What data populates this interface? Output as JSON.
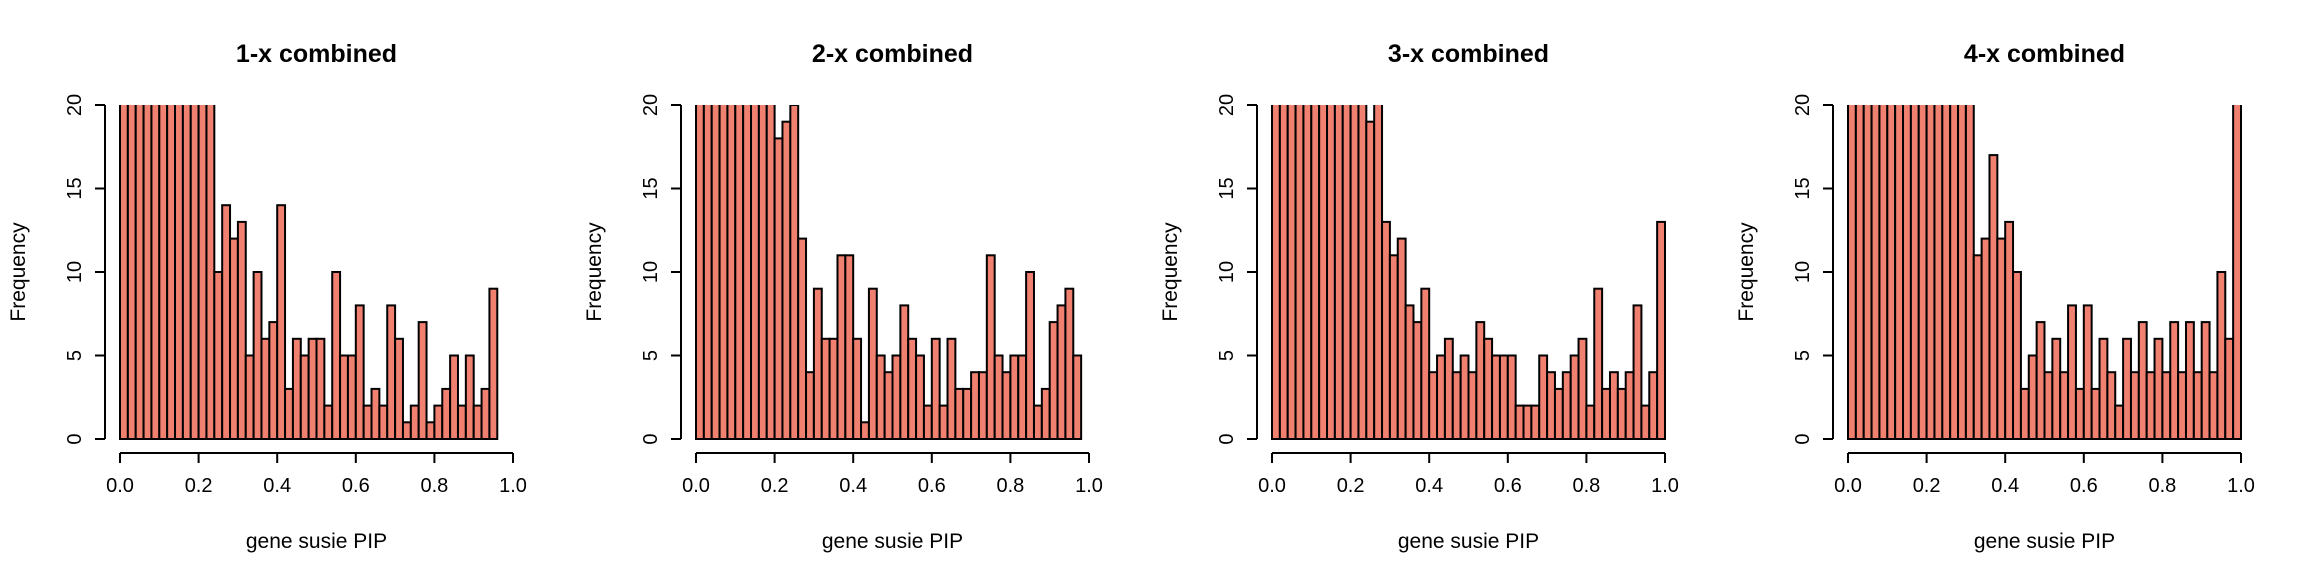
{
  "bar_color": "#F08070",
  "chart_data": [
    {
      "type": "bar",
      "title": "1-x combined",
      "xlabel": "gene susie PIP",
      "ylabel": "Frequency",
      "xlim": [
        0,
        1
      ],
      "ylim": [
        0,
        20
      ],
      "xticks": [
        "0.0",
        "0.2",
        "0.4",
        "0.6",
        "0.8",
        "1.0"
      ],
      "yticks": [
        "0",
        "5",
        "10",
        "15",
        "20"
      ],
      "bin_width": 0.02,
      "values": [
        21,
        21,
        21,
        21,
        21,
        21,
        21,
        21,
        21,
        21,
        21,
        21,
        10,
        14,
        12,
        13,
        5,
        10,
        6,
        7,
        14,
        3,
        6,
        5,
        6,
        6,
        2,
        10,
        5,
        5,
        8,
        2,
        3,
        2,
        8,
        6,
        1,
        2,
        7,
        1,
        2,
        3,
        5,
        2,
        5,
        2,
        3,
        9,
        0,
        0
      ]
    },
    {
      "type": "bar",
      "title": "2-x combined",
      "xlabel": "gene susie PIP",
      "ylabel": "Frequency",
      "xlim": [
        0,
        1
      ],
      "ylim": [
        0,
        20
      ],
      "xticks": [
        "0.0",
        "0.2",
        "0.4",
        "0.6",
        "0.8",
        "1.0"
      ],
      "yticks": [
        "0",
        "5",
        "10",
        "15",
        "20"
      ],
      "bin_width": 0.02,
      "values": [
        21,
        21,
        21,
        21,
        21,
        21,
        21,
        21,
        21,
        21,
        18,
        19,
        20,
        12,
        4,
        9,
        6,
        6,
        11,
        11,
        6,
        1,
        9,
        5,
        4,
        5,
        8,
        6,
        5,
        2,
        6,
        2,
        6,
        3,
        3,
        4,
        4,
        11,
        5,
        4,
        5,
        5,
        10,
        2,
        3,
        7,
        8,
        9,
        5,
        0
      ]
    },
    {
      "type": "bar",
      "title": "3-x combined",
      "xlabel": "gene susie PIP",
      "ylabel": "Frequency",
      "xlim": [
        0,
        1
      ],
      "ylim": [
        0,
        20
      ],
      "xticks": [
        "0.0",
        "0.2",
        "0.4",
        "0.6",
        "0.8",
        "1.0"
      ],
      "yticks": [
        "0",
        "5",
        "10",
        "15",
        "20"
      ],
      "bin_width": 0.02,
      "values": [
        21,
        21,
        21,
        21,
        21,
        21,
        21,
        21,
        21,
        21,
        21,
        21,
        19,
        21,
        13,
        11,
        12,
        8,
        7,
        9,
        4,
        5,
        6,
        4,
        5,
        4,
        7,
        6,
        5,
        5,
        5,
        2,
        2,
        2,
        5,
        4,
        3,
        4,
        5,
        6,
        2,
        9,
        3,
        4,
        3,
        4,
        8,
        2,
        4,
        13
      ]
    },
    {
      "type": "bar",
      "title": "4-x combined",
      "xlabel": "gene susie PIP",
      "ylabel": "Frequency",
      "xlim": [
        0,
        1
      ],
      "ylim": [
        0,
        20
      ],
      "xticks": [
        "0.0",
        "0.2",
        "0.4",
        "0.6",
        "0.8",
        "1.0"
      ],
      "yticks": [
        "0",
        "5",
        "10",
        "15",
        "20"
      ],
      "bin_width": 0.02,
      "values": [
        21,
        21,
        21,
        21,
        21,
        21,
        21,
        21,
        21,
        21,
        21,
        21,
        21,
        21,
        21,
        21,
        11,
        12,
        17,
        12,
        13,
        10,
        3,
        5,
        7,
        4,
        6,
        4,
        8,
        3,
        8,
        3,
        6,
        4,
        2,
        6,
        4,
        7,
        4,
        6,
        4,
        7,
        4,
        7,
        4,
        7,
        4,
        10,
        6,
        21
      ]
    }
  ]
}
